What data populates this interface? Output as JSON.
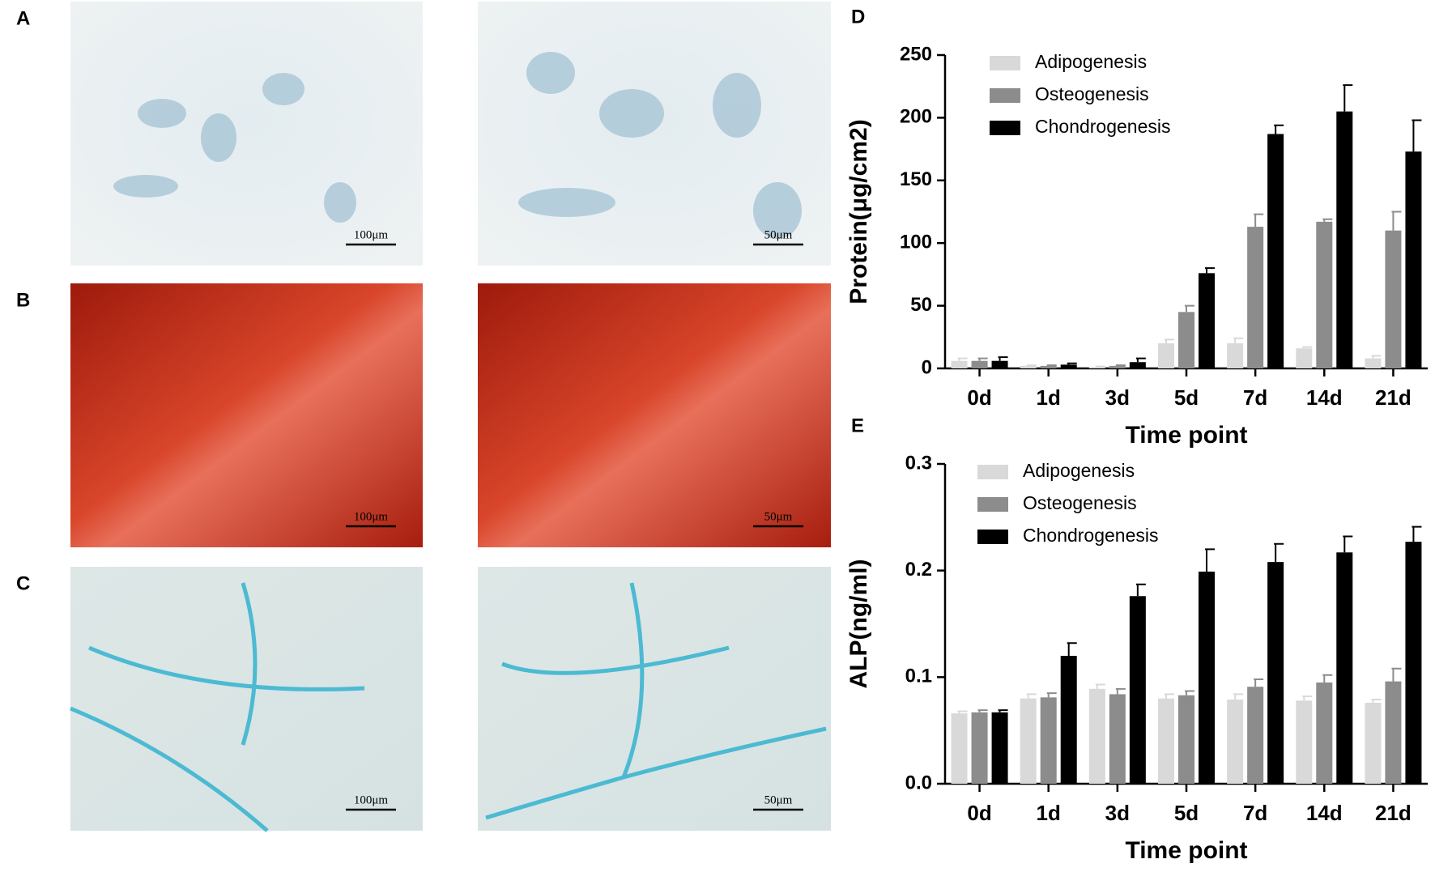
{
  "panels": [
    {
      "label": "A",
      "scale_bars": [
        "100μm",
        "50μm"
      ]
    },
    {
      "label": "B",
      "scale_bars": [
        "100μm",
        "50μm"
      ]
    },
    {
      "label": "C",
      "scale_bars": [
        "100μm",
        "50μm"
      ]
    }
  ],
  "chart_data": [
    {
      "type": "bar",
      "panel_label": "D",
      "ylabel": "Protein(μg/cm2)",
      "xlabel": "Time point",
      "categories": [
        "0d",
        "1d",
        "3d",
        "5d",
        "7d",
        "14d",
        "21d"
      ],
      "series": [
        {
          "name": "Adipogenesis",
          "color": "#d9d9d9",
          "values": [
            6,
            2,
            1,
            20,
            20,
            16,
            8
          ],
          "errors": [
            2,
            0.5,
            0.5,
            3,
            4,
            1,
            2
          ]
        },
        {
          "name": "Osteogenesis",
          "color": "#8c8c8c",
          "values": [
            6,
            2,
            2,
            45,
            113,
            117,
            110
          ],
          "errors": [
            2,
            0.5,
            0.5,
            5,
            10,
            2,
            15
          ]
        },
        {
          "name": "Chondrogenesis",
          "color": "#000000",
          "values": [
            6,
            3,
            5,
            76,
            187,
            205,
            173
          ],
          "errors": [
            3,
            1,
            3,
            4,
            7,
            21,
            25
          ]
        }
      ],
      "ylim": [
        0,
        250
      ],
      "yticks": [
        0,
        50,
        100,
        150,
        200,
        250
      ],
      "legend": "upper-left"
    },
    {
      "type": "bar",
      "panel_label": "E",
      "ylabel": "ALP(ng/ml)",
      "xlabel": "Time point",
      "categories": [
        "0d",
        "1d",
        "3d",
        "5d",
        "7d",
        "14d",
        "21d"
      ],
      "series": [
        {
          "name": "Adipogenesis",
          "color": "#d9d9d9",
          "values": [
            0.066,
            0.08,
            0.089,
            0.08,
            0.079,
            0.078,
            0.076
          ],
          "errors": [
            0.002,
            0.004,
            0.004,
            0.004,
            0.005,
            0.004,
            0.003
          ]
        },
        {
          "name": "Osteogenesis",
          "color": "#8c8c8c",
          "values": [
            0.067,
            0.081,
            0.084,
            0.083,
            0.091,
            0.095,
            0.096
          ],
          "errors": [
            0.002,
            0.004,
            0.005,
            0.004,
            0.007,
            0.007,
            0.012
          ]
        },
        {
          "name": "Chondrogenesis",
          "color": "#000000",
          "values": [
            0.067,
            0.12,
            0.176,
            0.199,
            0.208,
            0.217,
            0.227
          ],
          "errors": [
            0.002,
            0.012,
            0.011,
            0.021,
            0.017,
            0.015,
            0.014
          ]
        }
      ],
      "ylim": [
        0,
        0.3
      ],
      "yticks": [
        {
          "value": 0,
          "label": "0.0"
        },
        0.1,
        0.2,
        0.3
      ],
      "legend": "upper-left"
    }
  ]
}
